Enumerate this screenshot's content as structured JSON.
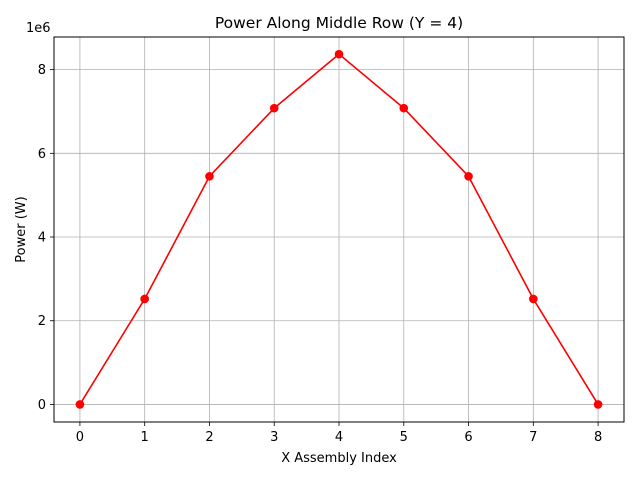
{
  "chart_data": {
    "type": "line",
    "title": "Power Along Middle Row (Y = 4)",
    "xlabel": "X Assembly Index",
    "ylabel": "Power (W)",
    "y_scale_label": "1e6",
    "x": [
      0,
      1,
      2,
      3,
      4,
      5,
      6,
      7,
      8
    ],
    "x_ticks": [
      "0",
      "1",
      "2",
      "3",
      "4",
      "5",
      "6",
      "7",
      "8"
    ],
    "y_ticks": [
      "0",
      "2",
      "4",
      "6",
      "8"
    ],
    "y_tick_values": [
      0,
      2,
      4,
      6,
      8
    ],
    "xlim": [
      -0.4,
      8.4
    ],
    "ylim": [
      -0.42,
      8.78
    ],
    "grid": true,
    "series": [
      {
        "values": [
          0,
          2.52,
          5.45,
          7.08,
          8.37,
          7.08,
          5.45,
          2.52,
          0
        ],
        "color": "#ff0000",
        "marker": "circle"
      }
    ]
  }
}
